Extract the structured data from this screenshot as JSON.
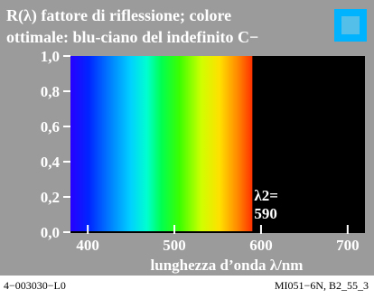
{
  "chart_data": {
    "type": "area",
    "title_line1": "R(λ) fattore di riflessione; colore",
    "title_line2": "ottimale: blu-ciano del indefinito C−",
    "xlabel": "lunghezza d’onda λ/nm",
    "ylabel": "",
    "xlim": [
      380,
      720
    ],
    "ylim": [
      0,
      1.0
    ],
    "x_ticks": [
      400,
      500,
      600,
      700
    ],
    "x_tick_labels": [
      "400",
      "500",
      "600",
      "700"
    ],
    "y_ticks": [
      0,
      0.2,
      0.4,
      0.6,
      0.8,
      1.0
    ],
    "y_tick_labels": [
      "0,0",
      "0,2",
      "0,4",
      "0,6",
      "0,8",
      "1,0"
    ],
    "series": [
      {
        "x": [
          380,
          590,
          590,
          720
        ],
        "values": [
          1.0,
          1.0,
          0.0,
          0.0
        ]
      }
    ],
    "annotation": {
      "lambda_label": "λ2=",
      "value": "590",
      "x": 590
    },
    "colors": {
      "panel": "#9b9b9b",
      "swatch_outer": "#00b3ff",
      "swatch_inner": "#54bfe8"
    }
  },
  "footer": {
    "left": "4−003030−L0",
    "right": "MI051−6N, B2_55_3"
  }
}
